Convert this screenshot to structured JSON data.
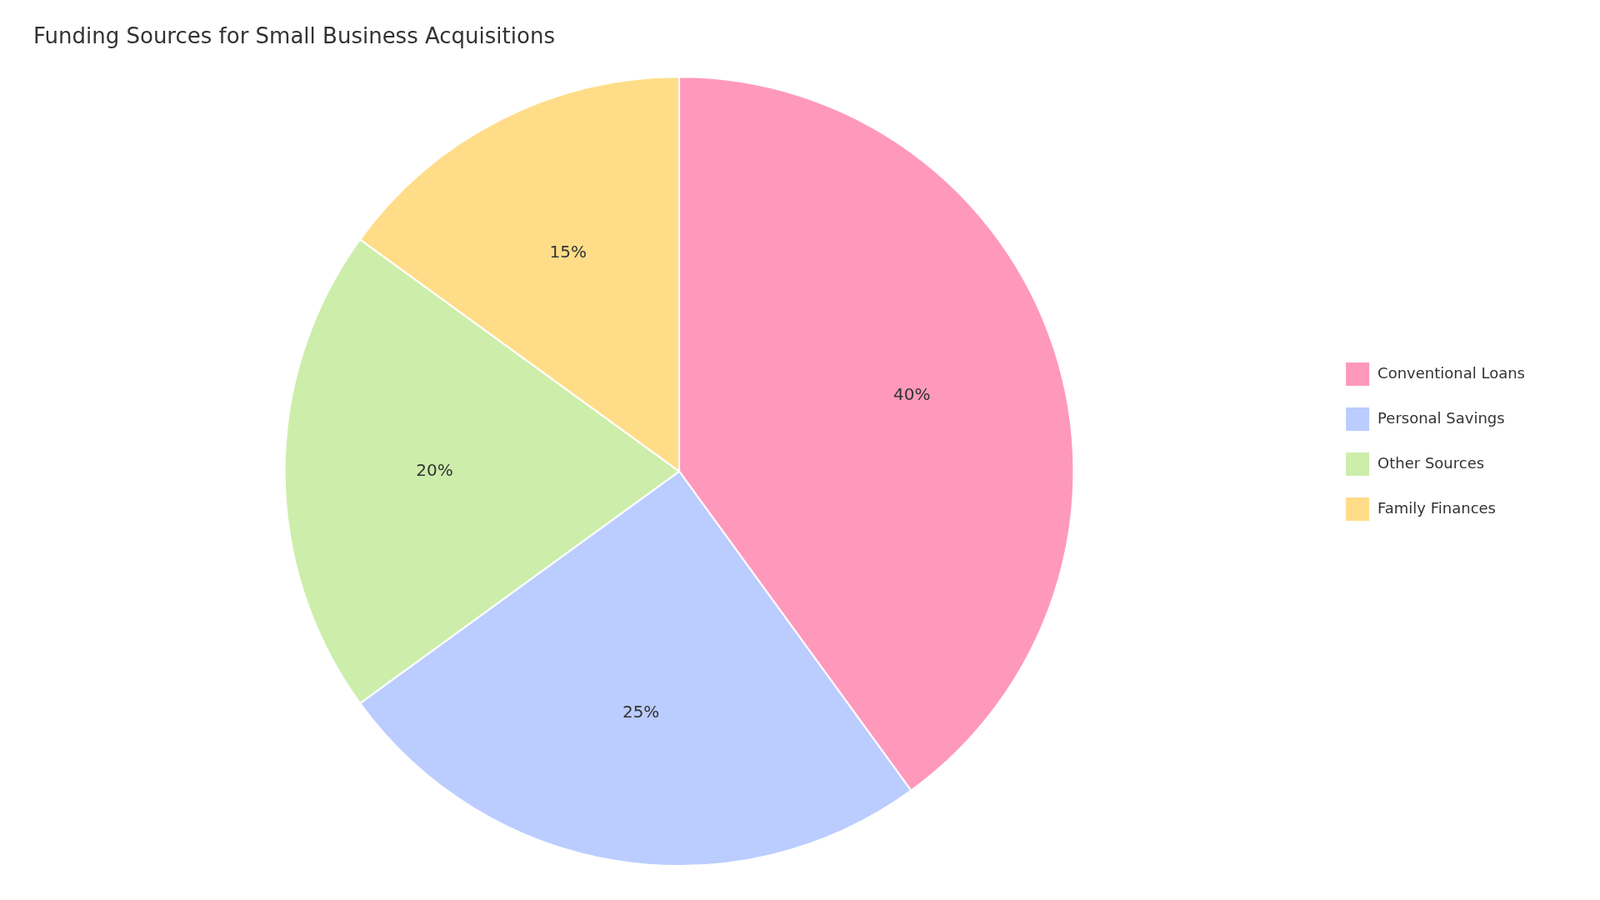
{
  "chart_data": {
    "type": "pie",
    "title": "Funding Sources for Small Business Acquisitions",
    "categories": [
      "Conventional Loans",
      "Personal Savings",
      "Other Sources",
      "Family Finances"
    ],
    "values": [
      40,
      25,
      20,
      15
    ],
    "value_labels": [
      "40%",
      "25%",
      "20%",
      "15%"
    ],
    "colors": [
      "#FF99BB",
      "#BBCCFF",
      "#CCEEAA",
      "#FFDD88"
    ],
    "data_labels": true,
    "legend": "right"
  }
}
